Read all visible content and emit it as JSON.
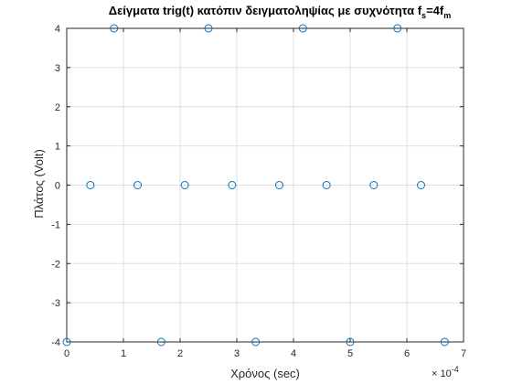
{
  "chart_data": {
    "type": "scatter",
    "title": "Δείγματα trig(t) κατόπιν δειγματοληψίας με συχνότητα",
    "title_math": {
      "f": "f",
      "s_sub": "s",
      "eq": "=4f",
      "m_sub": "m"
    },
    "xlabel": "Χρόνος (sec)",
    "ylabel": "Πλάτος (Volt)",
    "x_exponent": {
      "base": "× 10",
      "power": "-4"
    },
    "xlim": [
      0,
      7
    ],
    "ylim": [
      -4,
      4
    ],
    "xticks": [
      "0",
      "1",
      "2",
      "3",
      "4",
      "5",
      "6",
      "7"
    ],
    "yticks": [
      "-4",
      "-3",
      "-2",
      "-1",
      "0",
      "1",
      "2",
      "3",
      "4"
    ],
    "grid": true,
    "marker": "circle",
    "color": "#0072BD",
    "series": [
      {
        "x": [
          0,
          0.4167,
          0.8333,
          1.25,
          1.6667,
          2.0833,
          2.5,
          2.9167,
          3.3333,
          3.75,
          4.1667,
          4.5833,
          5.0,
          5.4167,
          5.8333,
          6.25,
          6.6667
        ],
        "y": [
          -4,
          0,
          4,
          0,
          -4,
          0,
          4,
          0,
          -4,
          0,
          4,
          0,
          -4,
          0,
          4,
          0,
          -4
        ]
      }
    ]
  }
}
